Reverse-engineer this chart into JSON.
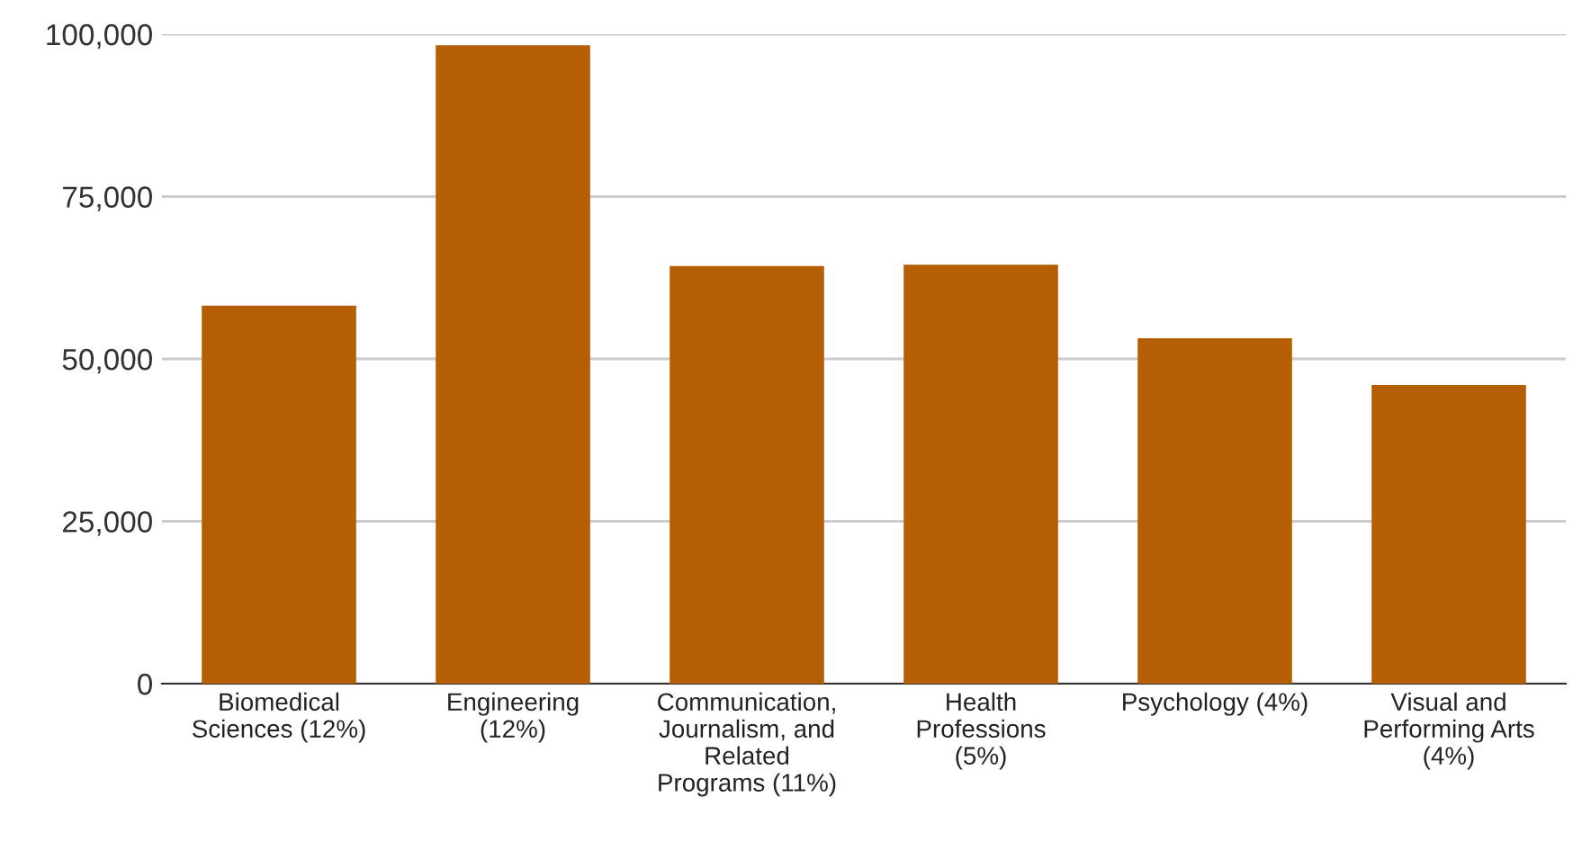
{
  "chart_data": {
    "type": "bar",
    "categories": [
      "Biomedical Sciences (12%)",
      "Engineering (12%)",
      "Communication, Journalism, and Related Programs (11%)",
      "Health Professions (5%)",
      "Psychology (4%)",
      "Visual and Performing Arts (4%)"
    ],
    "values": [
      58200,
      98300,
      64300,
      64500,
      53200,
      46000
    ],
    "color": "#b45f06",
    "ylim": [
      0,
      100000
    ],
    "yticks": [
      {
        "value": 0,
        "label": "0"
      },
      {
        "value": 25000,
        "label": "25,000"
      },
      {
        "value": 50000,
        "label": "50,000"
      },
      {
        "value": 75000,
        "label": "75,000"
      },
      {
        "value": 100000,
        "label": "100,000"
      }
    ],
    "grid": "y"
  }
}
